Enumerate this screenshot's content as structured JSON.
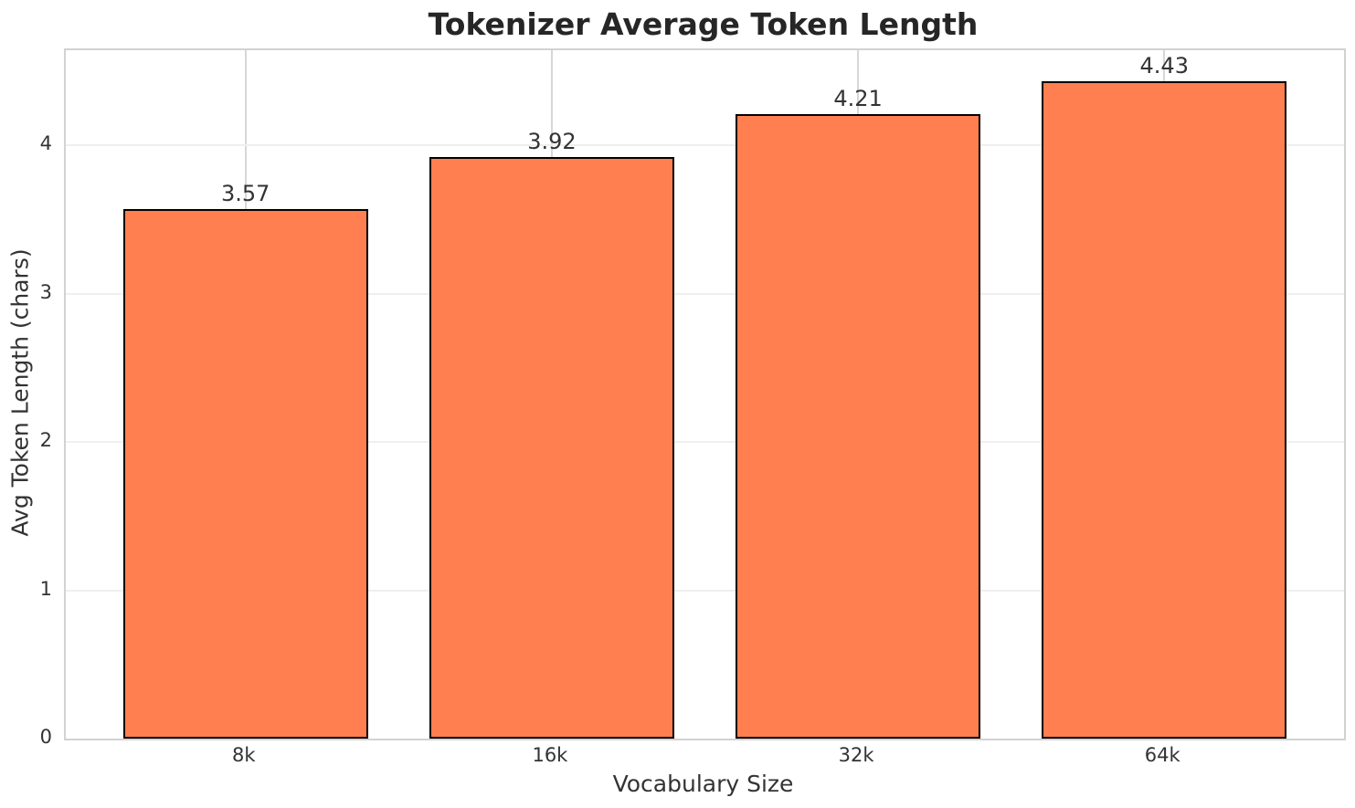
{
  "figure": {
    "background": "#FFFFFF"
  },
  "chart_data": {
    "type": "bar",
    "title": "Tokenizer Average Token Length",
    "xlabel": "Vocabulary Size",
    "ylabel": "Avg Token Length (chars)",
    "categories": [
      "8k",
      "16k",
      "32k",
      "64k"
    ],
    "values": [
      3.57,
      3.92,
      4.21,
      4.43
    ],
    "value_labels": [
      "3.57",
      "3.92",
      "4.21",
      "4.43"
    ],
    "yticks": [
      0,
      1,
      2,
      3,
      4
    ],
    "ytick_labels": [
      "0",
      "1",
      "2",
      "3",
      "4"
    ],
    "ylim": [
      0,
      4.64
    ],
    "grid": true,
    "legend": "none",
    "colors": {
      "bar_fill": "#FF7F50",
      "bar_edge": "#000000",
      "grid_horizontal": "#EFEFEF",
      "grid_vertical": "#D7D7D7",
      "spine": "#D2D2D2",
      "title_text": "#262626",
      "label_text": "#333333"
    }
  }
}
